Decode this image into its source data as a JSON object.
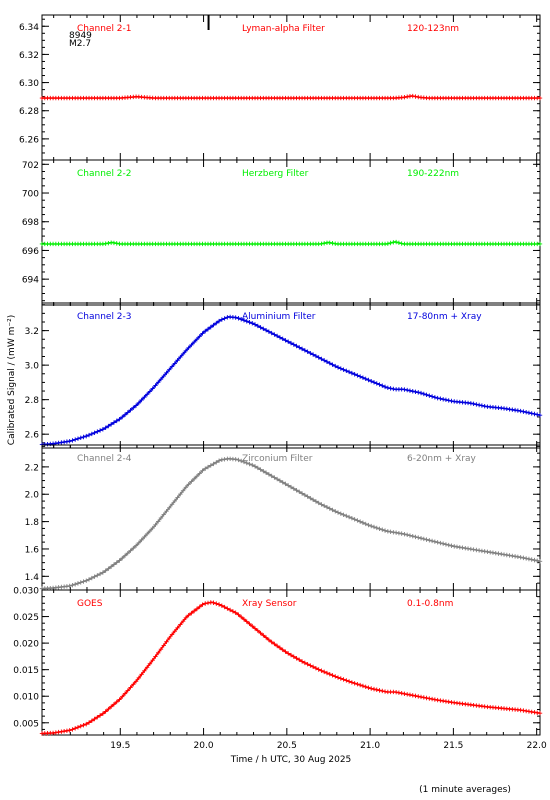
{
  "figure": {
    "ylabel": "Calibrated Signal / (mW m⁻²)",
    "xlabel": "Time / h UTC, 30 Aug 2025",
    "footnote": "(1 minute averages)",
    "flare_marker": {
      "time": 20.03,
      "lines": [
        "8949",
        "M2.7"
      ]
    }
  },
  "chart_data": [
    {
      "type": "line",
      "panel": "channel-2-1",
      "labels": [
        "Channel 2-1",
        "Lyman-alpha Filter",
        "120-123nm"
      ],
      "color": "#ff0000",
      "xlim": [
        19.03,
        22.02
      ],
      "ylim": [
        6.245,
        6.348
      ],
      "yticks": [
        6.26,
        6.28,
        6.3,
        6.32,
        6.34
      ],
      "ytick_labels": [
        "6.26",
        "6.28",
        "6.30",
        "6.32",
        "6.34"
      ],
      "series": [
        {
          "x": [
            19.03,
            19.5,
            19.55,
            19.6,
            19.65,
            19.7,
            20.5,
            21.15,
            21.2,
            21.25,
            21.3,
            21.35,
            22.02
          ],
          "y": [
            6.289,
            6.289,
            6.2895,
            6.29,
            6.2895,
            6.289,
            6.289,
            6.289,
            6.2895,
            6.2905,
            6.2895,
            6.289,
            6.289
          ]
        }
      ]
    },
    {
      "type": "line",
      "panel": "channel-2-2",
      "labels": [
        "Channel 2-2",
        "Herzberg Filter",
        "190-222nm"
      ],
      "color": "#00ee00",
      "xlim": [
        19.03,
        22.02
      ],
      "ylim": [
        692.2,
        702.3
      ],
      "yticks": [
        694,
        696,
        698,
        700,
        702
      ],
      "ytick_labels": [
        "694",
        "696",
        "698",
        "700",
        "702"
      ],
      "series": [
        {
          "x": [
            19.03,
            19.4,
            19.45,
            19.5,
            20.7,
            20.75,
            20.8,
            21.1,
            21.15,
            21.2,
            22.02
          ],
          "y": [
            696.45,
            696.45,
            696.55,
            696.45,
            696.45,
            696.55,
            696.45,
            696.45,
            696.6,
            696.45,
            696.45
          ]
        }
      ]
    },
    {
      "type": "line",
      "panel": "channel-2-3",
      "labels": [
        "Channel 2-3",
        "Aluminium Filter",
        "17-80nm + Xray"
      ],
      "color": "#0000dd",
      "xlim": [
        19.03,
        22.02
      ],
      "ylim": [
        2.52,
        3.36
      ],
      "yticks": [
        2.6,
        2.8,
        3.0,
        3.2
      ],
      "ytick_labels": [
        "2.6",
        "2.8",
        "3.0",
        "3.2"
      ],
      "series": [
        {
          "x": [
            19.03,
            19.1,
            19.2,
            19.3,
            19.4,
            19.5,
            19.6,
            19.7,
            19.8,
            19.9,
            20.0,
            20.1,
            20.15,
            20.2,
            20.3,
            20.4,
            20.5,
            20.6,
            20.7,
            20.8,
            20.9,
            21.0,
            21.1,
            21.15,
            21.2,
            21.3,
            21.4,
            21.5,
            21.6,
            21.7,
            21.8,
            21.9,
            22.02
          ],
          "y": [
            2.54,
            2.545,
            2.56,
            2.59,
            2.63,
            2.69,
            2.77,
            2.87,
            2.98,
            3.09,
            3.19,
            3.26,
            3.28,
            3.275,
            3.24,
            3.19,
            3.14,
            3.09,
            3.04,
            2.99,
            2.95,
            2.91,
            2.87,
            2.86,
            2.86,
            2.84,
            2.81,
            2.79,
            2.78,
            2.76,
            2.75,
            2.735,
            2.71
          ]
        }
      ]
    },
    {
      "type": "line",
      "panel": "channel-2-4",
      "labels": [
        "Channel 2-4",
        "Zirconium Filter",
        "6-20nm + Xray"
      ],
      "color": "#808080",
      "xlim": [
        19.03,
        22.02
      ],
      "ylim": [
        1.3,
        2.36
      ],
      "yticks": [
        1.4,
        1.6,
        1.8,
        2.0,
        2.2
      ],
      "ytick_labels": [
        "1.4",
        "1.6",
        "1.8",
        "2.0",
        "2.2"
      ],
      "series": [
        {
          "x": [
            19.03,
            19.1,
            19.2,
            19.3,
            19.4,
            19.5,
            19.6,
            19.7,
            19.8,
            19.9,
            20.0,
            20.1,
            20.15,
            20.2,
            20.3,
            20.4,
            20.5,
            20.6,
            20.7,
            20.8,
            20.9,
            21.0,
            21.1,
            21.15,
            21.2,
            21.3,
            21.4,
            21.5,
            21.6,
            21.7,
            21.8,
            21.9,
            22.02
          ],
          "y": [
            1.31,
            1.315,
            1.33,
            1.37,
            1.43,
            1.52,
            1.63,
            1.76,
            1.91,
            2.06,
            2.18,
            2.25,
            2.26,
            2.255,
            2.21,
            2.14,
            2.07,
            2.0,
            1.93,
            1.87,
            1.82,
            1.77,
            1.73,
            1.72,
            1.71,
            1.68,
            1.65,
            1.62,
            1.6,
            1.58,
            1.56,
            1.54,
            1.51
          ]
        }
      ]
    },
    {
      "type": "line",
      "panel": "goes",
      "labels": [
        "GOES",
        "Xray Sensor",
        "0.1-0.8nm"
      ],
      "color": "#ff0000",
      "xlim": [
        19.03,
        22.02
      ],
      "ylim": [
        0.0027,
        0.03
      ],
      "yticks": [
        0.005,
        0.01,
        0.015,
        0.02,
        0.025,
        0.03
      ],
      "ytick_labels": [
        "0.005",
        "0.010",
        "0.015",
        "0.020",
        "0.025",
        "0.030"
      ],
      "xticks": [
        19.5,
        20.0,
        20.5,
        21.0,
        21.5,
        22.0
      ],
      "xtick_labels": [
        "19.5",
        "20.0",
        "20.5",
        "21.0",
        "21.5",
        "22.0"
      ],
      "series": [
        {
          "x": [
            19.03,
            19.1,
            19.2,
            19.3,
            19.4,
            19.5,
            19.6,
            19.7,
            19.8,
            19.9,
            20.0,
            20.05,
            20.1,
            20.2,
            20.3,
            20.4,
            20.5,
            20.6,
            20.7,
            20.8,
            20.9,
            21.0,
            21.1,
            21.15,
            21.2,
            21.3,
            21.4,
            21.5,
            21.6,
            21.7,
            21.8,
            21.9,
            22.02
          ],
          "y": [
            0.003,
            0.0031,
            0.0036,
            0.0048,
            0.0068,
            0.0095,
            0.013,
            0.017,
            0.0212,
            0.025,
            0.0274,
            0.0277,
            0.0272,
            0.0256,
            0.023,
            0.0204,
            0.0182,
            0.0164,
            0.0149,
            0.0136,
            0.0125,
            0.0115,
            0.0108,
            0.0108,
            0.0105,
            0.0099,
            0.0093,
            0.0088,
            0.0084,
            0.008,
            0.0077,
            0.0074,
            0.0068
          ]
        }
      ]
    }
  ]
}
